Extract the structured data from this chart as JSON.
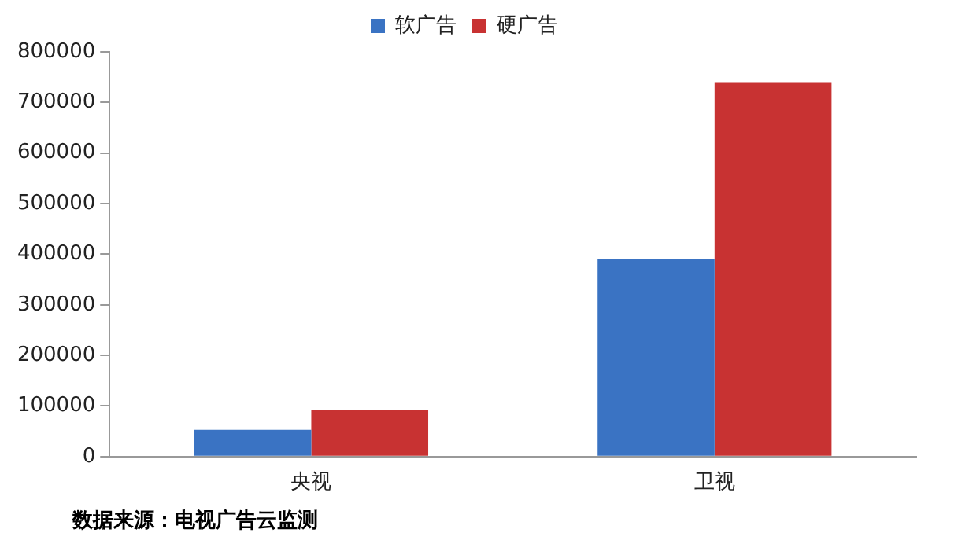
{
  "chart_data": {
    "type": "bar",
    "categories": [
      "央视",
      "卫视"
    ],
    "series": [
      {
        "name": "软广告",
        "color": "#3a73c3",
        "values": [
          53000,
          390000
        ]
      },
      {
        "name": "硬广告",
        "color": "#c83232",
        "values": [
          93000,
          740000
        ]
      }
    ],
    "ylim": [
      0,
      800000
    ],
    "yticks": [
      0,
      100000,
      200000,
      300000,
      400000,
      500000,
      600000,
      700000,
      800000
    ],
    "grid": false,
    "legend": "top",
    "annotations": [
      "数据来源：电视广告云监测"
    ]
  }
}
